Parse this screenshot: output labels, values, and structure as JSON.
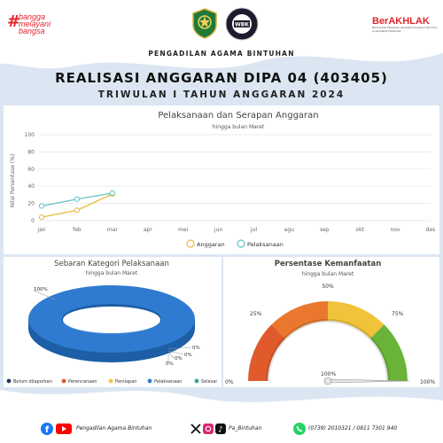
{
  "header": {
    "left_logo_lines": [
      "bangga",
      "melayani",
      "bangsa"
    ],
    "right_logo_title": "BerAKHLAK",
    "right_logo_caption": "Berorientasi Pelayanan Akuntabel Kompeten Harmonis Loyal Adaptif Kolaboratif",
    "emblem_label": "ZONA INTEGRITAS WBK",
    "wbk_label": "WBK",
    "org_name": "PENGADILAN AGAMA BINTUHAN",
    "title": "REALISASI ANGGARAN DIPA 04 (403405)",
    "subtitle": "TRIWULAN I TAHUN ANGGARAN 2024"
  },
  "line_chart": {
    "title": "Pelaksanaan dan Serapan Anggaran",
    "subtitle": "hingga bulan Maret",
    "ylabel": "Nilai Persentase (%)"
  },
  "donut_chart": {
    "title": "Sebaran Kategori Pelaksanaan",
    "subtitle": "hingga bulan Maret"
  },
  "gauge_chart": {
    "title": "Persentase Kemanfaatan",
    "subtitle": "hingga bulan Maret"
  },
  "footer": {
    "org_name": "Pengadilan Agama Bintuhan",
    "handle": "Pa_Bintuhan",
    "phone": "(0739) 2010321 / 0811 7301 940"
  },
  "colors": {
    "anggaran": "#e8b93a",
    "pelaksanaan": "#62c2c8",
    "donut_blue": "#2e7bd1",
    "gauge_red": "#e05a2c",
    "gauge_yellow": "#f0c33a",
    "gauge_green": "#69b438",
    "brand_red": "#e3242b"
  },
  "chart_data": [
    {
      "type": "line",
      "categories": [
        "jan",
        "feb",
        "mar",
        "apr",
        "mei",
        "jun",
        "jul",
        "agu",
        "sep",
        "okt",
        "nov",
        "des"
      ],
      "ylim": [
        0,
        100
      ],
      "yticks": [
        0,
        20,
        40,
        60,
        80,
        100
      ],
      "grid": true,
      "legend": "bottom",
      "series": [
        {
          "name": "Anggaran",
          "values": [
            4,
            12,
            31,
            null,
            null,
            null,
            null,
            null,
            null,
            null,
            null,
            null
          ]
        },
        {
          "name": "Pelaksanaan",
          "values": [
            17,
            25,
            32,
            null,
            null,
            null,
            null,
            null,
            null,
            null,
            null,
            null
          ]
        }
      ]
    },
    {
      "type": "pie",
      "style": "donut-3d",
      "legend": "bottom",
      "slices": [
        {
          "name": "Belum dilaporkan",
          "value": 0,
          "label": "0%",
          "color": "#1f3b5c"
        },
        {
          "name": "Perencanaan",
          "value": 0,
          "label": "0%",
          "color": "#e05a2c"
        },
        {
          "name": "Persiapan",
          "value": 0,
          "label": "0%",
          "color": "#f0c33a"
        },
        {
          "name": "Pelaksanaan",
          "value": 100,
          "label": "100%",
          "color": "#2e7bd1"
        },
        {
          "name": "Selesai",
          "value": 0,
          "label": "0%",
          "color": "#2fa89a"
        }
      ]
    },
    {
      "type": "gauge",
      "value": 100,
      "range": [
        0,
        100
      ],
      "ticks": [
        "0%",
        "25%",
        "50%",
        "75%",
        "100%"
      ],
      "value_label": "100%"
    }
  ]
}
